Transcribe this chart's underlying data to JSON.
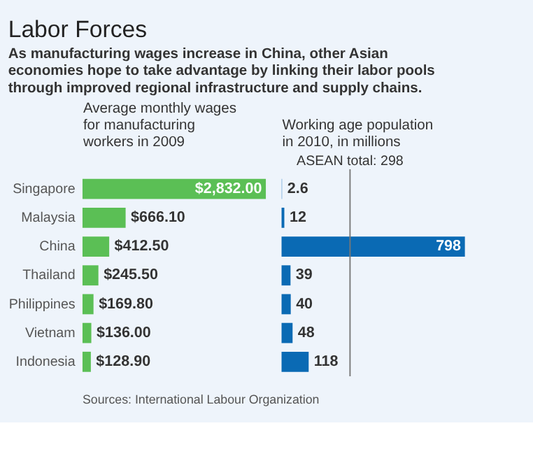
{
  "chart_data": [
    {
      "type": "bar",
      "orientation": "horizontal",
      "title": "Labor Forces",
      "subtitle": "As manufacturing wages increase in China, other Asian economies hope to take advantage by linking their labor pools through improved regional infrastructure and supply chains.",
      "xlabel": "Average monthly wages for manufacturing workers in 2009",
      "categories": [
        "Singapore",
        "Malaysia",
        "China",
        "Thailand",
        "Philippines",
        "Vietnam",
        "Indonesia"
      ],
      "values": [
        2832.0,
        666.1,
        412.5,
        245.5,
        169.8,
        136.0,
        128.9
      ],
      "value_labels": [
        "$2,832.00",
        "$666.10",
        "$412.50",
        "$245.50",
        "$169.80",
        "$136.00",
        "$128.90"
      ],
      "color": "#5bbf55",
      "annotations": [
        "Sources: International Labour Organization"
      ]
    },
    {
      "type": "bar",
      "orientation": "horizontal",
      "xlabel": "Working age population in 2010, in millions",
      "categories": [
        null,
        null,
        null,
        null,
        null,
        null,
        null
      ],
      "values": [
        2.6,
        12,
        798,
        39,
        40,
        48,
        118
      ],
      "colors": [
        "#7fb2dd",
        "#0a6ab4",
        "#0a6ab4",
        "#0a6ab4",
        "#0a6ab4",
        "#0a6ab4",
        "#0a6ab4"
      ],
      "data_labels": true,
      "tick_labels": false,
      "ref_lines": [
        {
          "axis": "x",
          "value": 298,
          "label": "ASEAN total: 298"
        }
      ]
    }
  ]
}
